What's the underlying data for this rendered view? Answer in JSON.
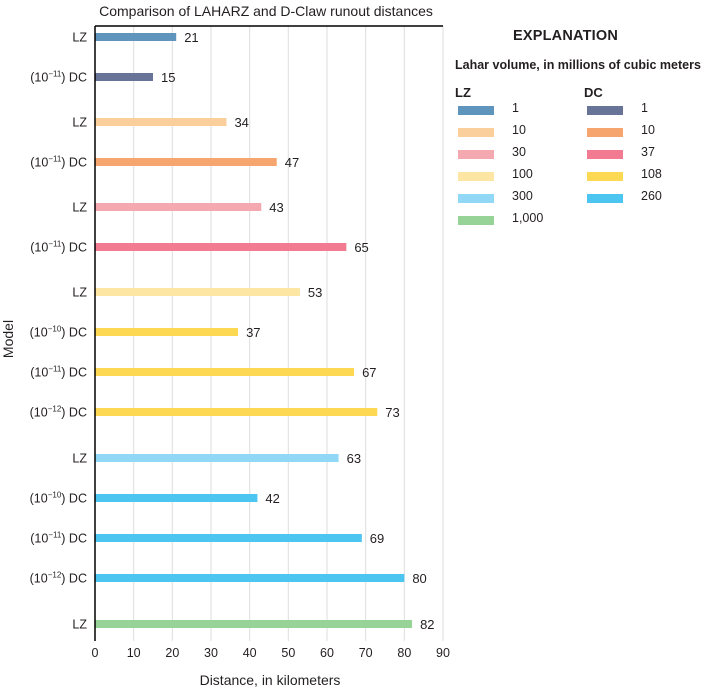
{
  "chart_data": {
    "type": "bar",
    "orientation": "horizontal",
    "title": "Comparison of LAHARZ and D-Claw runout distances",
    "xlabel": "Distance, in kilometers",
    "ylabel": "Model",
    "xlim": [
      0,
      90
    ],
    "xticks": [
      0,
      10,
      20,
      30,
      40,
      50,
      60,
      70,
      80,
      90
    ],
    "grid": "vertical",
    "bars": [
      {
        "label_prefix": "",
        "exp": "",
        "label_suffix": "LZ",
        "model": "LZ",
        "volume": "1",
        "value": 21,
        "color": "#5f95bd"
      },
      {
        "label_prefix": "(10",
        "exp": "−11",
        "label_suffix": ") DC",
        "model": "DC",
        "volume": "1",
        "value": 15,
        "color": "#677497"
      },
      {
        "label_prefix": "",
        "exp": "",
        "label_suffix": "LZ",
        "model": "LZ",
        "volume": "10",
        "value": 34,
        "color": "#fbcf9b"
      },
      {
        "label_prefix": "(10",
        "exp": "−11",
        "label_suffix": ") DC",
        "model": "DC",
        "volume": "10",
        "value": 47,
        "color": "#f5a56d"
      },
      {
        "label_prefix": "",
        "exp": "",
        "label_suffix": "LZ",
        "model": "LZ",
        "volume": "30",
        "value": 43,
        "color": "#f4a9b0"
      },
      {
        "label_prefix": "(10",
        "exp": "−11",
        "label_suffix": ") DC",
        "model": "DC",
        "volume": "37",
        "value": 65,
        "color": "#f27b91"
      },
      {
        "label_prefix": "",
        "exp": "",
        "label_suffix": "LZ",
        "model": "LZ",
        "volume": "100",
        "value": 53,
        "color": "#fde5a4"
      },
      {
        "label_prefix": "(10",
        "exp": "−10",
        "label_suffix": ") DC",
        "model": "DC",
        "volume": "108",
        "value": 37,
        "color": "#fdd853"
      },
      {
        "label_prefix": "(10",
        "exp": "−11",
        "label_suffix": ") DC",
        "model": "DC",
        "volume": "108",
        "value": 67,
        "color": "#fdd853"
      },
      {
        "label_prefix": "(10",
        "exp": "−12",
        "label_suffix": ") DC",
        "model": "DC",
        "volume": "108",
        "value": 73,
        "color": "#fdd853"
      },
      {
        "label_prefix": "",
        "exp": "",
        "label_suffix": "LZ",
        "model": "LZ",
        "volume": "300",
        "value": 63,
        "color": "#90d8f6"
      },
      {
        "label_prefix": "(10",
        "exp": "−10",
        "label_suffix": ") DC",
        "model": "DC",
        "volume": "260",
        "value": 42,
        "color": "#4dc5f1"
      },
      {
        "label_prefix": "(10",
        "exp": "−11",
        "label_suffix": ") DC",
        "model": "DC",
        "volume": "260",
        "value": 69,
        "color": "#4dc5f1"
      },
      {
        "label_prefix": "(10",
        "exp": "−12",
        "label_suffix": ") DC",
        "model": "DC",
        "volume": "260",
        "value": 80,
        "color": "#4dc5f1"
      },
      {
        "label_prefix": "",
        "exp": "",
        "label_suffix": "LZ",
        "model": "LZ",
        "volume": "1,000",
        "value": 82,
        "color": "#97d296"
      }
    ],
    "legend": {
      "placement": "right",
      "title": "EXPLANATION",
      "subtitle": "Lahar volume, in millions of cubic meters",
      "groups": [
        {
          "name": "LZ",
          "items": [
            {
              "label": "1",
              "color": "#5f95bd"
            },
            {
              "label": "10",
              "color": "#fbcf9b"
            },
            {
              "label": "30",
              "color": "#f4a9b0"
            },
            {
              "label": "100",
              "color": "#fde5a4"
            },
            {
              "label": "300",
              "color": "#90d8f6"
            },
            {
              "label": "1,000",
              "color": "#97d296"
            }
          ]
        },
        {
          "name": "DC",
          "items": [
            {
              "label": "1",
              "color": "#677497"
            },
            {
              "label": "10",
              "color": "#f5a56d"
            },
            {
              "label": "37",
              "color": "#f27b91"
            },
            {
              "label": "108",
              "color": "#fdd853"
            },
            {
              "label": "260",
              "color": "#4dc5f1"
            }
          ]
        }
      ]
    }
  }
}
